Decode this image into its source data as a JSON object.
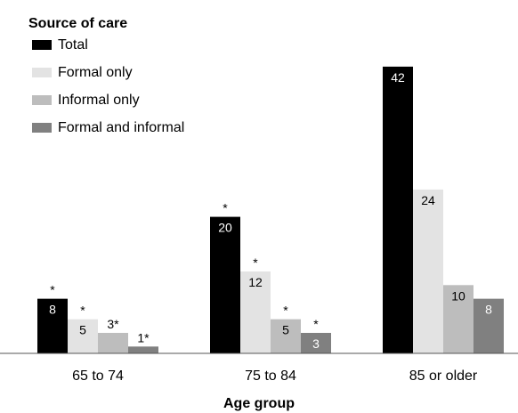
{
  "chart_data": {
    "type": "bar",
    "title": "",
    "xlabel": "Age group",
    "ylabel": "",
    "ylim": [
      0,
      42
    ],
    "grid": false,
    "legend_title": "Source of care",
    "legend_position": "top-left",
    "categories": [
      "65 to 74",
      "75 to 84",
      "85 or older"
    ],
    "series": [
      {
        "name": "Total",
        "color": "#000000",
        "values": [
          8,
          20,
          42
        ],
        "labels": [
          "8",
          "20",
          "42"
        ],
        "stars": [
          "*",
          "*",
          ""
        ],
        "label_inside": [
          true,
          true,
          true
        ]
      },
      {
        "name": "Formal only",
        "color": "#e3e3e3",
        "values": [
          5,
          12,
          24
        ],
        "labels": [
          "5",
          "12",
          "24"
        ],
        "stars": [
          "*",
          "*",
          ""
        ],
        "label_inside": [
          true,
          true,
          true
        ]
      },
      {
        "name": "Informal only",
        "color": "#bdbdbd",
        "values": [
          3,
          5,
          10
        ],
        "labels": [
          "3*",
          "5",
          "10"
        ],
        "stars": [
          "",
          "*",
          ""
        ],
        "label_inside": [
          false,
          true,
          true
        ]
      },
      {
        "name": "Formal and informal",
        "color": "#808080",
        "values": [
          1,
          3,
          8
        ],
        "labels": [
          "1*",
          "3",
          "8"
        ],
        "stars": [
          "",
          "*",
          ""
        ],
        "label_inside": [
          false,
          true,
          true
        ]
      }
    ]
  }
}
